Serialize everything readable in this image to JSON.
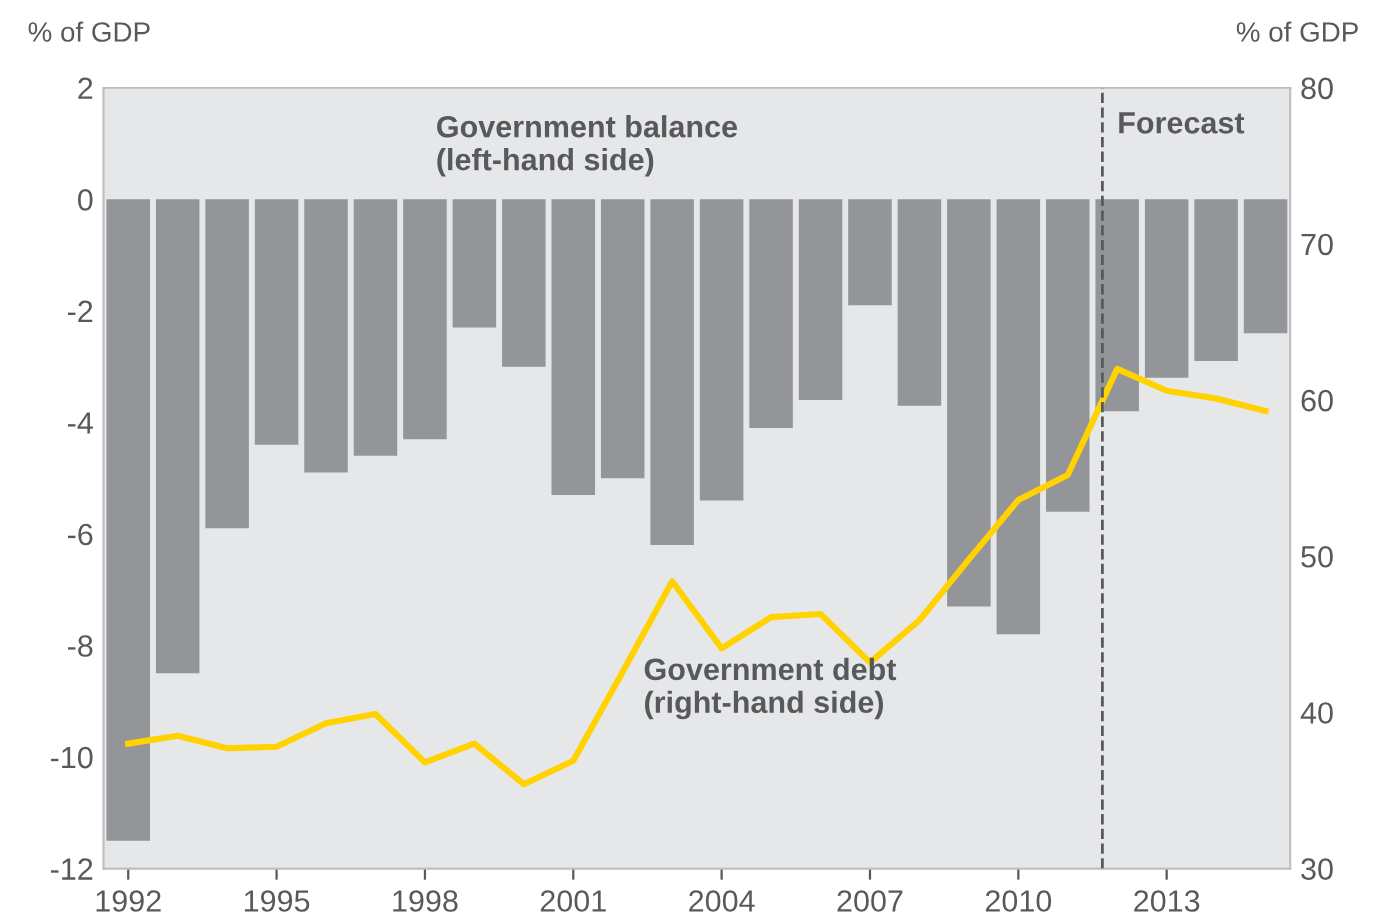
{
  "chart_data": {
    "type": "bar",
    "x": [
      1992,
      1993,
      1994,
      1995,
      1996,
      1997,
      1998,
      1999,
      2000,
      2001,
      2002,
      2003,
      2004,
      2005,
      2006,
      2007,
      2008,
      2009,
      2010,
      2011,
      2012,
      2013,
      2014,
      2015
    ],
    "ylabel": "% of GDP",
    "y2label": "% of GDP",
    "series": [
      {
        "color": "#939598",
        "values": [
          -11.5,
          -8.5,
          -5.9,
          -4.4,
          -4.9,
          -4.6,
          -4.3,
          -2.3,
          -3.0,
          -5.3,
          -5.0,
          -6.2,
          -5.4,
          -4.1,
          -3.6,
          -1.9,
          -3.7,
          -7.3,
          -7.8,
          -5.6,
          -3.8,
          -3.2,
          -2.9,
          -2.4
        ]
      },
      {
        "type": "line",
        "axis": "y2",
        "color": "#ffd200",
        "values": [
          38.0,
          38.5,
          37.7,
          37.8,
          39.3,
          39.9,
          36.8,
          38.0,
          35.4,
          36.9,
          42.6,
          48.4,
          44.1,
          46.1,
          46.3,
          43.2,
          45.9,
          49.8,
          53.6,
          55.2,
          62.0,
          60.6,
          60.1,
          59.3
        ]
      }
    ],
    "xlim": [
      1991.5,
      2015.5
    ],
    "xticks": [
      1992,
      1995,
      1998,
      2001,
      2004,
      2007,
      2010,
      2013
    ],
    "ylim": [
      -12,
      2
    ],
    "yticks": [
      -12,
      -10,
      -8,
      -6,
      -4,
      -2,
      0,
      2
    ],
    "y2lim": [
      30,
      80
    ],
    "y2ticks": [
      30,
      40,
      50,
      60,
      70,
      80
    ],
    "ref_lines": [
      {
        "axis": "x",
        "value": 2011.7,
        "label": "Forecast",
        "color": "#58595b",
        "line_style": "dashed"
      }
    ],
    "annotations": [
      "Government balance\n(left-hand side)",
      "Government debt\n(right-hand side)"
    ],
    "grid": false,
    "legend": false
  }
}
